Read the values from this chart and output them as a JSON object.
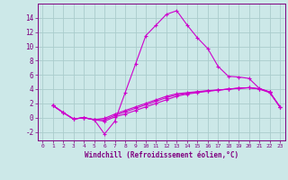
{
  "xlabel": "Windchill (Refroidissement éolien,°C)",
  "background_color": "#cce8e8",
  "grid_color": "#aacccc",
  "line_color": "#cc00cc",
  "x_ticks": [
    0,
    1,
    2,
    3,
    4,
    5,
    6,
    7,
    8,
    9,
    10,
    11,
    12,
    13,
    14,
    15,
    16,
    17,
    18,
    19,
    20,
    21,
    22,
    23
  ],
  "y_ticks": [
    -2,
    0,
    2,
    4,
    6,
    8,
    10,
    12,
    14
  ],
  "ylim": [
    -3.2,
    16.0
  ],
  "xlim": [
    -0.5,
    23.5
  ],
  "curves": [
    [
      1.7,
      0.7,
      -0.2,
      0.0,
      -0.3,
      -2.3,
      -0.5,
      3.5,
      7.5,
      11.5,
      13.0,
      14.5,
      15.0,
      13.0,
      11.2,
      9.7,
      7.2,
      5.8,
      5.7,
      5.5,
      4.1,
      3.6,
      1.5
    ],
    [
      1.7,
      0.7,
      -0.2,
      0.0,
      -0.3,
      -0.5,
      0.1,
      0.5,
      1.0,
      1.5,
      2.0,
      2.5,
      3.0,
      3.3,
      3.5,
      3.7,
      3.85,
      4.0,
      4.15,
      4.2,
      4.0,
      3.5,
      1.5
    ],
    [
      1.7,
      0.7,
      -0.2,
      0.0,
      -0.3,
      -0.3,
      0.3,
      0.8,
      1.3,
      1.8,
      2.3,
      2.8,
      3.2,
      3.4,
      3.6,
      3.75,
      3.85,
      4.0,
      4.1,
      4.2,
      4.05,
      3.6,
      1.5
    ],
    [
      1.7,
      0.7,
      -0.2,
      0.0,
      -0.3,
      -0.1,
      0.5,
      1.0,
      1.5,
      2.0,
      2.5,
      3.0,
      3.35,
      3.5,
      3.65,
      3.78,
      3.88,
      4.0,
      4.12,
      4.2,
      4.05,
      3.6,
      1.5
    ]
  ]
}
